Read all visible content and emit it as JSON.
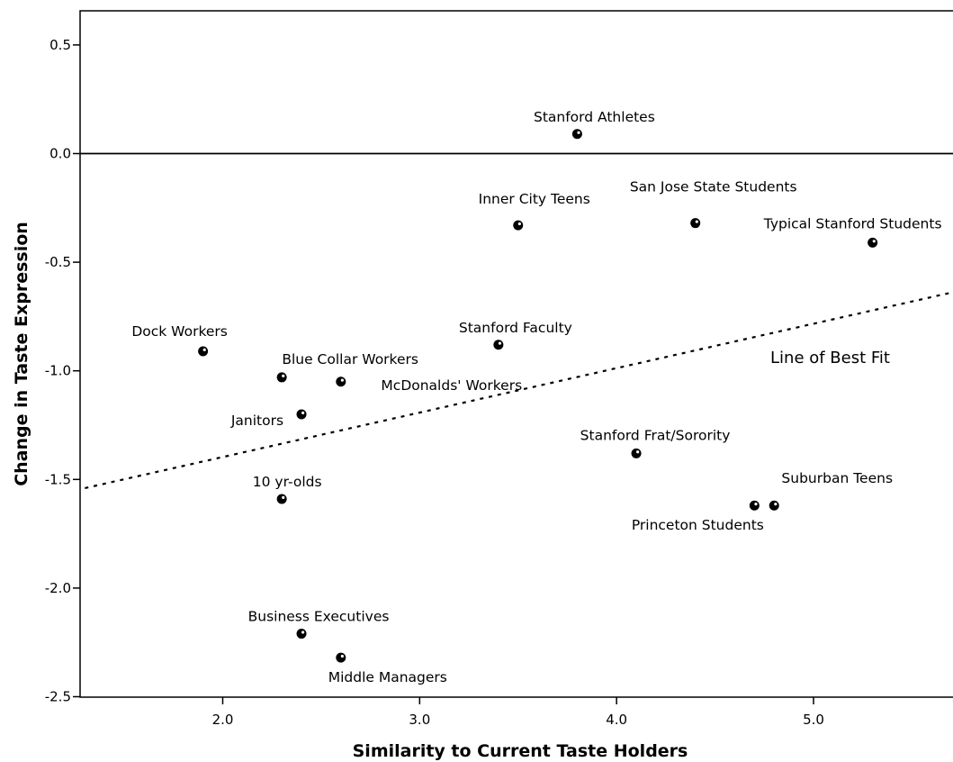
{
  "chart_data": {
    "type": "scatter",
    "xlabel": "Similarity to Current Taste Holders",
    "ylabel": "Change in Taste Expression",
    "xlim": [
      1.3,
      5.7
    ],
    "ylim": [
      -2.5,
      0.67
    ],
    "x_ticks": [
      "2.0",
      "3.0",
      "4.0",
      "5.0"
    ],
    "y_ticks": [
      "0.5",
      "0.0",
      "-0.5",
      "-1.0",
      "-1.5",
      "-2.0",
      "-2.5"
    ],
    "reference_line_y": 0.0,
    "points": [
      {
        "label": "Stanford Athletes",
        "x": 3.8,
        "y": 0.09
      },
      {
        "label": "Inner City Teens",
        "x": 3.5,
        "y": -0.33
      },
      {
        "label": "San Jose State Students",
        "x": 4.4,
        "y": -0.32
      },
      {
        "label": "Typical Stanford Students",
        "x": 5.3,
        "y": -0.41
      },
      {
        "label": "Dock Workers",
        "x": 1.9,
        "y": -0.91
      },
      {
        "label": "Stanford Faculty",
        "x": 3.4,
        "y": -0.88
      },
      {
        "label": "Blue Collar Workers",
        "x": 2.3,
        "y": -1.03
      },
      {
        "label": "McDonalds' Workers",
        "x": 2.6,
        "y": -1.05
      },
      {
        "label": "Janitors",
        "x": 2.4,
        "y": -1.2
      },
      {
        "label": "Stanford Frat/Sorority",
        "x": 4.1,
        "y": -1.38
      },
      {
        "label": "10 yr-olds",
        "x": 2.3,
        "y": -1.59
      },
      {
        "label": "Suburban Teens",
        "x": 4.8,
        "y": -1.62
      },
      {
        "label": "Princeton Students",
        "x": 4.7,
        "y": -1.62
      },
      {
        "label": "Business Executives",
        "x": 2.4,
        "y": -2.21
      },
      {
        "label": "Middle Managers",
        "x": 2.6,
        "y": -2.32
      }
    ],
    "best_fit": {
      "label": "Line of Best Fit",
      "x": [
        1.3,
        5.7
      ],
      "y": [
        -1.54,
        -0.64
      ]
    },
    "grid": false,
    "legend": "none"
  }
}
